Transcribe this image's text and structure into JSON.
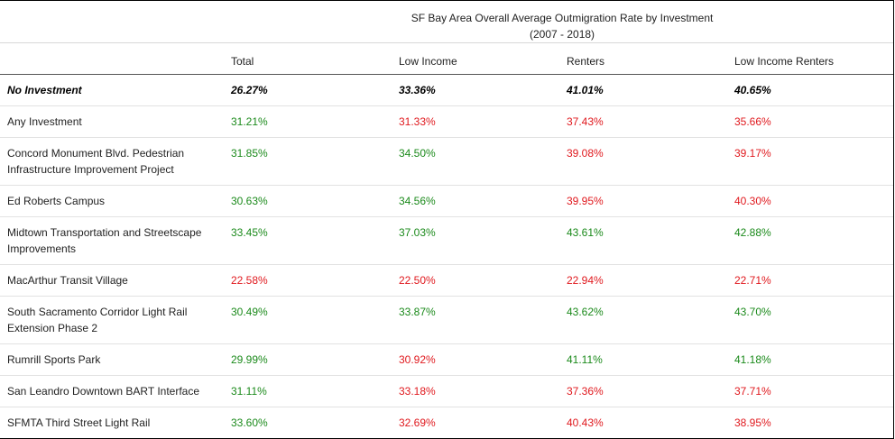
{
  "colors": {
    "positive": "#1b8a1b",
    "negative": "#e0191e",
    "baseline": "#000000"
  },
  "chart_data": {
    "type": "table",
    "title_line1": "SF Bay Area Overall Average Outmigration Rate by Investment",
    "title_line2": "(2007 - 2018)",
    "columns": [
      "",
      "Total",
      "Low Income",
      "Renters",
      "Low Income Renters"
    ],
    "rows": [
      {
        "name": "No Investment",
        "baseline": true,
        "cells": [
          {
            "value": "26.27%",
            "status": "baseline"
          },
          {
            "value": "33.36%",
            "status": "baseline"
          },
          {
            "value": "41.01%",
            "status": "baseline"
          },
          {
            "value": "40.65%",
            "status": "baseline"
          }
        ]
      },
      {
        "name": "Any Investment",
        "cells": [
          {
            "value": "31.21%",
            "status": "positive"
          },
          {
            "value": "31.33%",
            "status": "negative"
          },
          {
            "value": "37.43%",
            "status": "negative"
          },
          {
            "value": "35.66%",
            "status": "negative"
          }
        ]
      },
      {
        "name": "Concord Monument Blvd. Pedestrian Infrastructure Improvement Project",
        "cells": [
          {
            "value": "31.85%",
            "status": "positive"
          },
          {
            "value": "34.50%",
            "status": "positive"
          },
          {
            "value": "39.08%",
            "status": "negative"
          },
          {
            "value": "39.17%",
            "status": "negative"
          }
        ]
      },
      {
        "name": "Ed Roberts Campus",
        "cells": [
          {
            "value": "30.63%",
            "status": "positive"
          },
          {
            "value": "34.56%",
            "status": "positive"
          },
          {
            "value": "39.95%",
            "status": "negative"
          },
          {
            "value": "40.30%",
            "status": "negative"
          }
        ]
      },
      {
        "name": "Midtown Transportation and Streetscape Improvements",
        "cells": [
          {
            "value": "33.45%",
            "status": "positive"
          },
          {
            "value": "37.03%",
            "status": "positive"
          },
          {
            "value": "43.61%",
            "status": "positive"
          },
          {
            "value": "42.88%",
            "status": "positive"
          }
        ]
      },
      {
        "name": "MacArthur Transit Village",
        "cells": [
          {
            "value": "22.58%",
            "status": "negative"
          },
          {
            "value": "22.50%",
            "status": "negative"
          },
          {
            "value": "22.94%",
            "status": "negative"
          },
          {
            "value": "22.71%",
            "status": "negative"
          }
        ]
      },
      {
        "name": "South Sacramento Corridor Light Rail Extension Phase 2",
        "cells": [
          {
            "value": "30.49%",
            "status": "positive"
          },
          {
            "value": "33.87%",
            "status": "positive"
          },
          {
            "value": "43.62%",
            "status": "positive"
          },
          {
            "value": "43.70%",
            "status": "positive"
          }
        ]
      },
      {
        "name": "Rumrill Sports Park",
        "cells": [
          {
            "value": "29.99%",
            "status": "positive"
          },
          {
            "value": "30.92%",
            "status": "negative"
          },
          {
            "value": "41.11%",
            "status": "positive"
          },
          {
            "value": "41.18%",
            "status": "positive"
          }
        ]
      },
      {
        "name": "San Leandro Downtown BART Interface",
        "cells": [
          {
            "value": "31.11%",
            "status": "positive"
          },
          {
            "value": "33.18%",
            "status": "negative"
          },
          {
            "value": "37.36%",
            "status": "negative"
          },
          {
            "value": "37.71%",
            "status": "negative"
          }
        ]
      },
      {
        "name": "SFMTA Third Street Light Rail",
        "cells": [
          {
            "value": "33.60%",
            "status": "positive"
          },
          {
            "value": "32.69%",
            "status": "negative"
          },
          {
            "value": "40.43%",
            "status": "negative"
          },
          {
            "value": "38.95%",
            "status": "negative"
          }
        ]
      }
    ]
  }
}
